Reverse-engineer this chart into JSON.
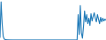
{
  "values": [
    300,
    4200,
    1800,
    400,
    100,
    50,
    30,
    20,
    15,
    10,
    8,
    6,
    5,
    5,
    5,
    5,
    5,
    5,
    5,
    5,
    5,
    5,
    5,
    5,
    5,
    5,
    5,
    5,
    5,
    5,
    5,
    5,
    5,
    5,
    5,
    5,
    5,
    5,
    5,
    5,
    5,
    5,
    5,
    5,
    5,
    5,
    5,
    5,
    5,
    5,
    5,
    5,
    5,
    5,
    5,
    5,
    5,
    5,
    5,
    5,
    5,
    5,
    5,
    5,
    5,
    5,
    5,
    5,
    5,
    5,
    5,
    5,
    5,
    2800,
    600,
    3800,
    800,
    200,
    1500,
    3200,
    2000,
    2800,
    1800,
    2400,
    1600,
    2900,
    2100,
    2600,
    3000,
    2400,
    2000,
    2800,
    2300,
    1800,
    2500,
    2000,
    2400,
    2100,
    2300,
    2200
  ],
  "line_color": "#1f7ab8",
  "line_width": 0.8,
  "bg_color": "#ffffff"
}
